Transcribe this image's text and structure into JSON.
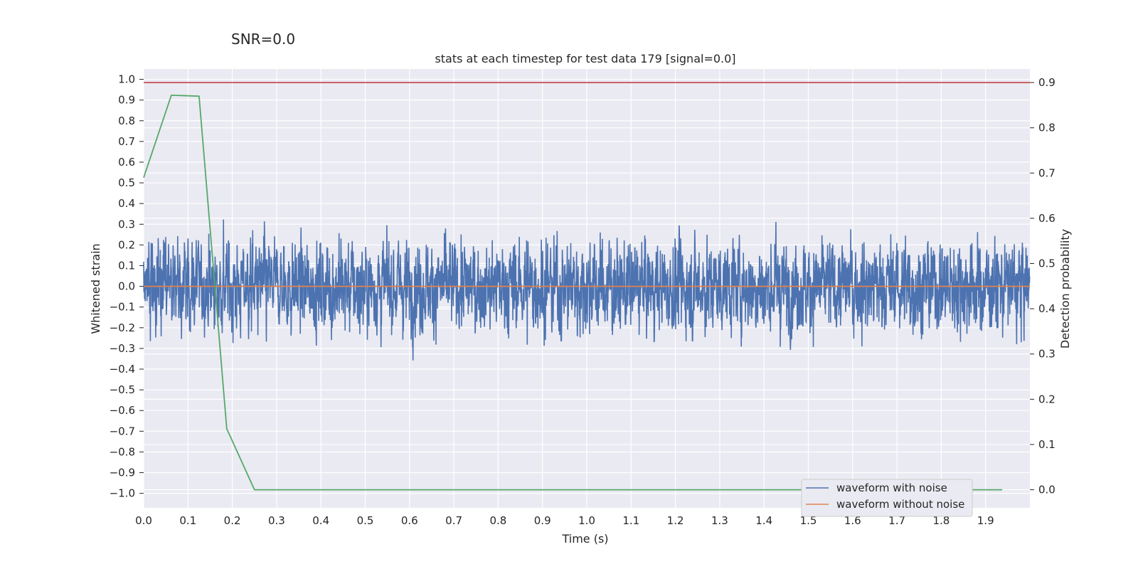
{
  "suptitle": "SNR=0.0",
  "chart_data": {
    "type": "line",
    "title": "stats at each timestep for test data 179 [signal=0.0]",
    "xlabel": "Time (s)",
    "ylabel": "Whitened strain",
    "y2label": "Detection probability",
    "xlim": [
      0.0,
      2.0
    ],
    "ylim": [
      -1.07,
      1.05
    ],
    "y2lim": [
      -0.04,
      0.93
    ],
    "x_ticks": [
      "0.0",
      "0.1",
      "0.2",
      "0.3",
      "0.4",
      "0.5",
      "0.6",
      "0.7",
      "0.8",
      "0.9",
      "1.0",
      "1.1",
      "1.2",
      "1.3",
      "1.4",
      "1.5",
      "1.6",
      "1.7",
      "1.8",
      "1.9"
    ],
    "y_ticks": [
      "1.0",
      "0.9",
      "0.8",
      "0.7",
      "0.6",
      "0.5",
      "0.4",
      "0.3",
      "0.2",
      "0.1",
      "0.0",
      "-0.1",
      "-0.2",
      "-0.3",
      "-0.4",
      "-0.5",
      "-0.6",
      "-0.7",
      "-0.8",
      "-0.9",
      "-1.0"
    ],
    "y2_ticks": [
      "0.9",
      "0.8",
      "0.7",
      "0.6",
      "0.5",
      "0.4",
      "0.3",
      "0.2",
      "0.1",
      "0.0"
    ],
    "grid": true,
    "legend_position": "bottom-right",
    "series": [
      {
        "name": "waveform with noise",
        "color": "#4c72b0",
        "axis": "left",
        "sample_rate": 2048,
        "description_of_values": "pseudo-random whitened noise between -1 and 1",
        "noise_seed": 179,
        "noise_amplitude": 0.25
      },
      {
        "name": "waveform without noise",
        "color": "#dd8452",
        "axis": "left",
        "x": [
          0.0,
          2.0
        ],
        "y": [
          0.0,
          0.0
        ]
      },
      {
        "name": "",
        "color": "#55a868",
        "axis": "right",
        "x": [
          0.0,
          0.0625,
          0.125,
          0.1875,
          0.25,
          0.3125,
          1.9375
        ],
        "y": [
          0.69,
          0.872,
          0.87,
          0.135,
          0.0,
          0.0,
          0.0
        ]
      },
      {
        "name": "",
        "color": "#c44e52",
        "axis": "right",
        "x": [
          0.0,
          2.0
        ],
        "y": [
          0.9,
          0.9
        ]
      }
    ]
  }
}
